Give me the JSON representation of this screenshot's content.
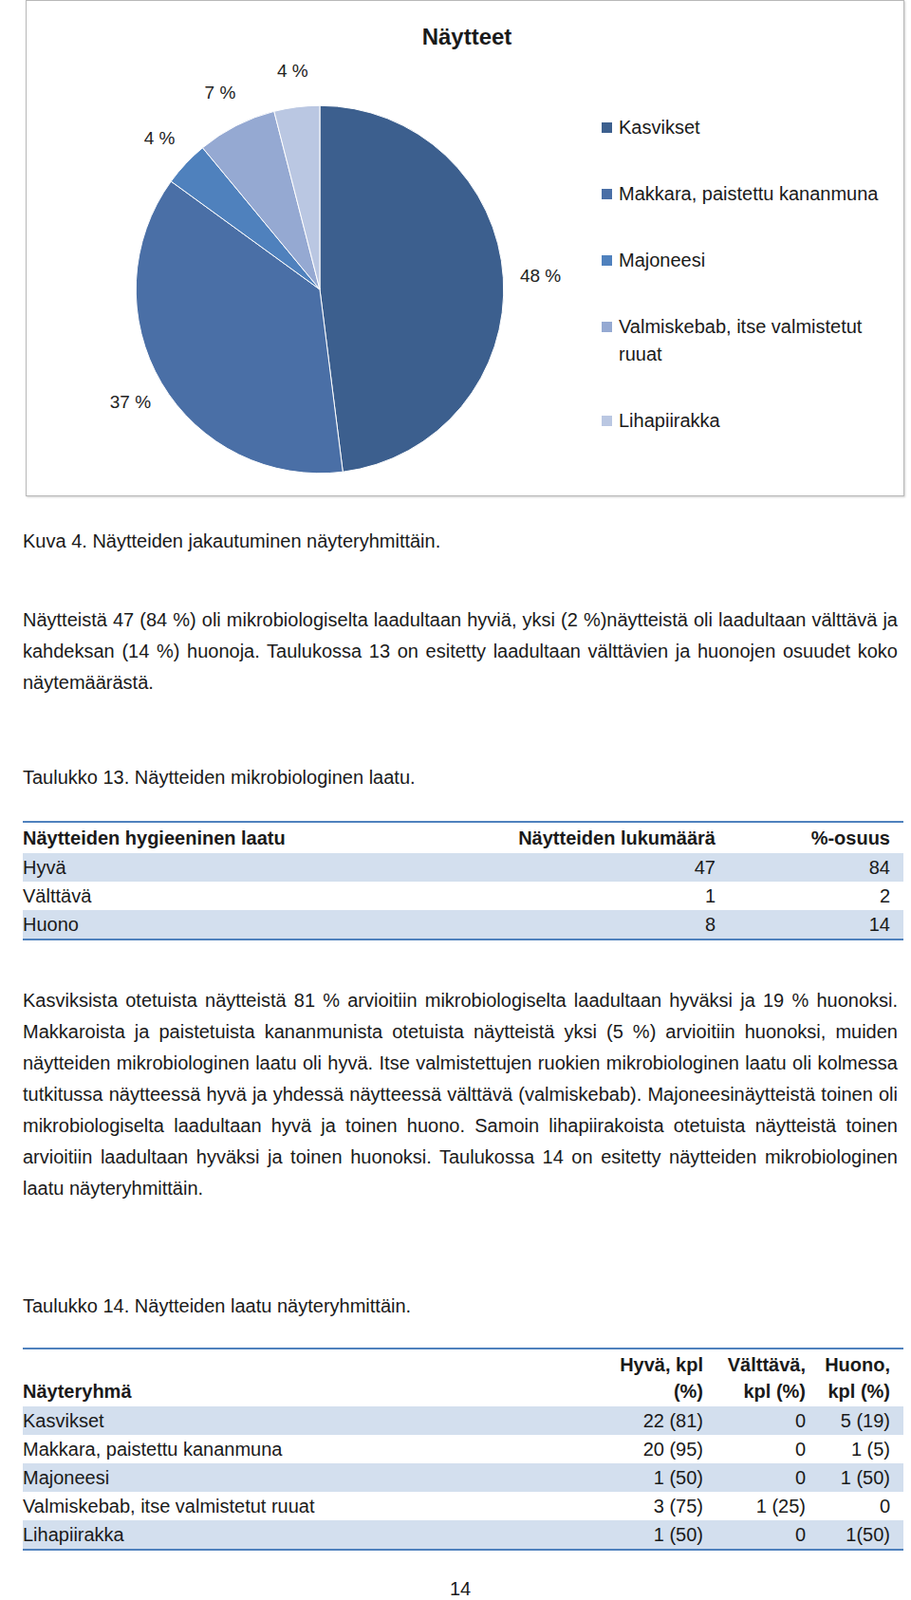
{
  "chart_data": {
    "type": "pie",
    "title": "Näytteet",
    "categories": [
      "Kasvikset",
      "Makkara, paistettu kananmuna",
      "Majoneesi",
      "Valmiskebab, itse valmistetut ruuat",
      "Lihapiirakka"
    ],
    "values": [
      48,
      37,
      4,
      7,
      4
    ],
    "value_labels": [
      "48 %",
      "37 %",
      "4 %",
      "7 %",
      "4 %"
    ],
    "colors": [
      "#3c5f8e",
      "#4a6fa6",
      "#4f81bd",
      "#95a9d2",
      "#bac7e2"
    ],
    "data_labels": true,
    "legend": "right"
  },
  "document": {
    "figure_caption": "Kuva 4. Näytteiden jakautuminen näyteryhmittäin.",
    "paragraph_1": "Näytteistä 47 (84 %) oli mikrobiologiselta laadultaan hyviä, yksi (2 %)näytteistä oli laadultaan välttävä ja kahdeksan (14 %) huonoja. Taulukossa 13 on esitetty laadultaan välttävien ja huonojen osuudet koko näytemäärästä.",
    "table_13": {
      "title": "Taulukko 13. Näytteiden mikrobiologinen laatu.",
      "header": [
        "Näytteiden hygieeninen laatu",
        "Näytteiden lukumäärä",
        "%-osuus"
      ],
      "rows": [
        [
          "Hyvä",
          47,
          84
        ],
        [
          "Välttävä",
          1,
          2
        ],
        [
          "Huono",
          8,
          14
        ]
      ]
    },
    "paragraph_2": "Kasviksista otetuista näytteistä 81 % arvioitiin mikrobiologiselta laadultaan hyväksi ja 19 % huonoksi. Makkaroista ja paistetuista kananmunista otetuista näytteistä yksi (5 %) arvioitiin huonoksi, muiden näytteiden mikrobiologinen laatu oli hyvä. Itse valmistettujen ruokien mikrobiologinen laatu oli kolmessa tutkitussa näytteessä hyvä ja yhdessä näytteessä välttävä (valmiskebab). Majoneesinäytteistä toinen oli mikrobiologiselta laadultaan hyvä ja toinen huono. Samoin lihapiirakoista otetuista näytteistä toinen arvioitiin laadultaan hyväksi ja toinen huonoksi. Taulukossa 14 on esitetty näytteiden mikrobiologinen laatu näyteryhmittäin.",
    "table_14": {
      "title": "Taulukko 14. Näytteiden laatu näyteryhmittäin.",
      "header": [
        "Näyteryhmä",
        "Hyvä, kpl (%)",
        "Välttävä, kpl (%)",
        "Huono, kpl (%)"
      ],
      "rows": [
        [
          "Kasvikset",
          "22 (81)",
          "0",
          "5 (19)"
        ],
        [
          "Makkara, paistettu kananmuna",
          "20 (95)",
          "0",
          "1 (5)"
        ],
        [
          "Majoneesi",
          "1 (50)",
          "0",
          "1 (50)"
        ],
        [
          "Valmiskebab, itse valmistetut ruuat",
          "3 (75)",
          "1 (25)",
          "0"
        ],
        [
          "Lihapiirakka",
          "1 (50)",
          "0",
          "1(50)"
        ]
      ]
    },
    "page_number": 14
  }
}
